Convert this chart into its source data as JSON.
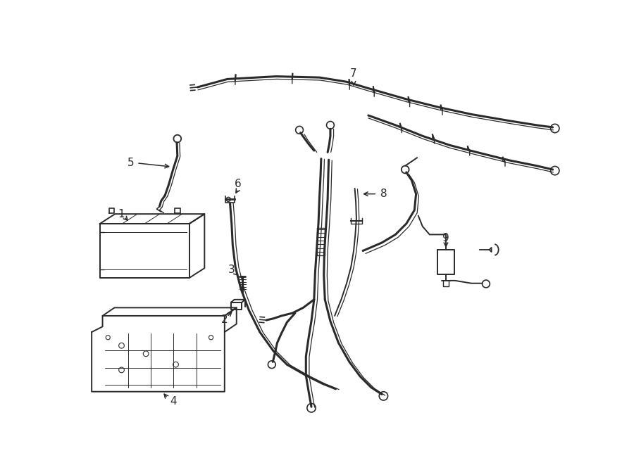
{
  "bg_color": "#ffffff",
  "line_color": "#2a2a2a",
  "fig_width": 9.0,
  "fig_height": 6.61,
  "dpi": 100,
  "lw_thick": 2.2,
  "lw_med": 1.4,
  "lw_thin": 0.9
}
